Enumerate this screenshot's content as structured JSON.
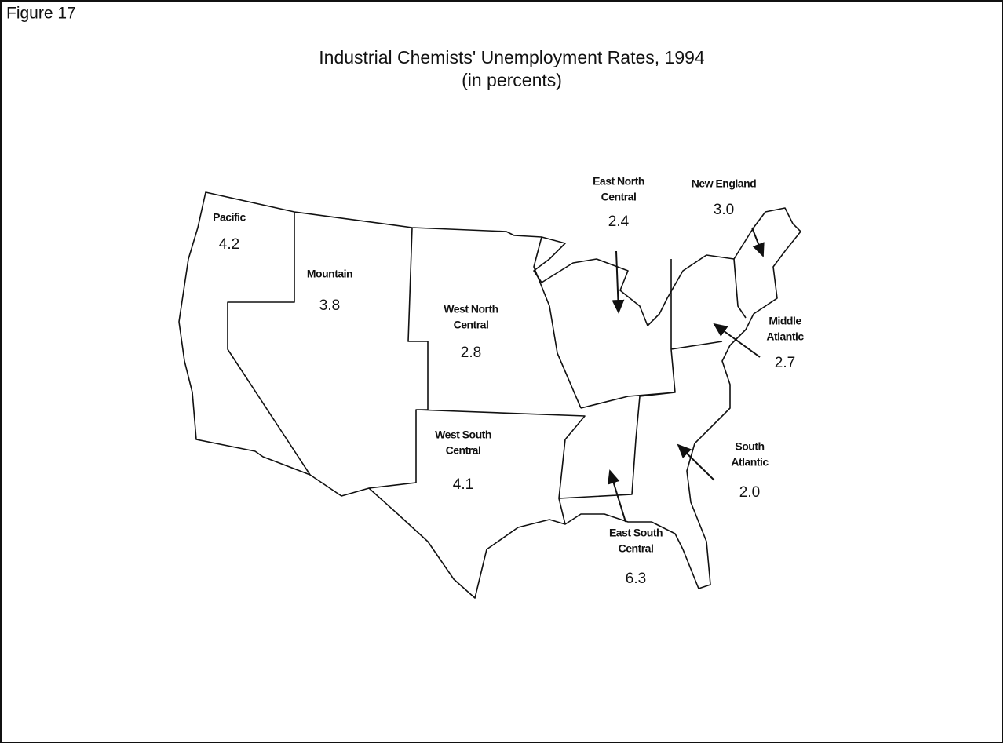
{
  "figure_label": "Figure 17",
  "title": "Industrial Chemists' Unemployment Rates, 1994",
  "subtitle": "(in percents)",
  "regions": [
    {
      "name_lines": [
        "Pacific"
      ],
      "value": "4.2"
    },
    {
      "name_lines": [
        "Mountain"
      ],
      "value": "3.8"
    },
    {
      "name_lines": [
        "West North",
        "Central"
      ],
      "value": "2.8"
    },
    {
      "name_lines": [
        "West South",
        "Central"
      ],
      "value": "4.1"
    },
    {
      "name_lines": [
        "East North",
        "Central"
      ],
      "value": "2.4"
    },
    {
      "name_lines": [
        "New England"
      ],
      "value": "3.0"
    },
    {
      "name_lines": [
        "Middle",
        "Atlantic"
      ],
      "value": "2.7"
    },
    {
      "name_lines": [
        "South",
        "Atlantic"
      ],
      "value": "2.0"
    },
    {
      "name_lines": [
        "East South",
        "Central"
      ],
      "value": "6.3"
    }
  ]
}
